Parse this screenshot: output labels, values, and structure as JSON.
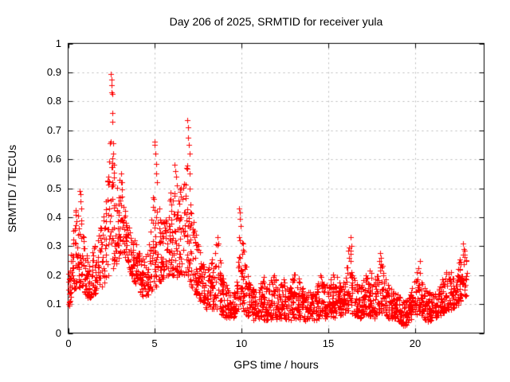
{
  "chart_data": {
    "type": "scatter",
    "title": "Day 206 of 2025, SRMTID for receiver yula",
    "xlabel": "GPS time / hours",
    "ylabel": "SRMTID / TECUs",
    "xlim": [
      0,
      24
    ],
    "ylim": [
      0,
      1
    ],
    "xticks": [
      0,
      5,
      10,
      15,
      20
    ],
    "xtick_labels": [
      "0",
      "5",
      "10",
      "15",
      "20"
    ],
    "yticks": [
      0,
      0.1,
      0.2,
      0.3,
      0.4,
      0.5,
      0.6,
      0.7,
      0.8,
      0.9,
      1
    ],
    "ytick_labels": [
      "0",
      "0.1",
      "0.2",
      "0.3",
      "0.4",
      "0.5",
      "0.6",
      "0.7",
      "0.8",
      "0.9",
      "1"
    ],
    "grid": true,
    "legend": "none",
    "marker": "plus",
    "marker_color": "#ff0000",
    "grid_color": "#b8b8b8",
    "axis_color": "#000000",
    "background_color": "#ffffff",
    "series_name": "SRMTID",
    "time_span_hours": [
      0,
      23
    ],
    "sampling_points_per_hour": 100,
    "band_weight_exponent": 1.3,
    "envelope": [
      [
        0.0,
        0.09,
        0.22
      ],
      [
        0.2,
        0.13,
        0.3
      ],
      [
        0.4,
        0.15,
        0.42
      ],
      [
        0.6,
        0.16,
        0.49
      ],
      [
        0.8,
        0.15,
        0.4
      ],
      [
        1.0,
        0.13,
        0.3
      ],
      [
        1.2,
        0.12,
        0.24
      ],
      [
        1.5,
        0.13,
        0.3
      ],
      [
        1.8,
        0.15,
        0.36
      ],
      [
        2.1,
        0.17,
        0.42
      ],
      [
        2.35,
        0.2,
        0.6
      ],
      [
        2.55,
        0.22,
        0.62
      ],
      [
        2.75,
        0.22,
        0.5
      ],
      [
        3.0,
        0.26,
        0.55
      ],
      [
        3.2,
        0.28,
        0.47
      ],
      [
        3.5,
        0.22,
        0.38
      ],
      [
        3.8,
        0.18,
        0.33
      ],
      [
        4.1,
        0.15,
        0.29
      ],
      [
        4.4,
        0.11,
        0.25
      ],
      [
        4.7,
        0.14,
        0.34
      ],
      [
        4.95,
        0.16,
        0.5
      ],
      [
        5.15,
        0.16,
        0.46
      ],
      [
        5.4,
        0.18,
        0.4
      ],
      [
        5.7,
        0.2,
        0.44
      ],
      [
        6.0,
        0.2,
        0.52
      ],
      [
        6.3,
        0.19,
        0.48
      ],
      [
        6.6,
        0.2,
        0.52
      ],
      [
        6.9,
        0.2,
        0.6
      ],
      [
        7.1,
        0.16,
        0.42
      ],
      [
        7.4,
        0.13,
        0.35
      ],
      [
        7.7,
        0.1,
        0.26
      ],
      [
        8.0,
        0.08,
        0.22
      ],
      [
        8.3,
        0.08,
        0.26
      ],
      [
        8.6,
        0.08,
        0.33
      ],
      [
        8.9,
        0.06,
        0.22
      ],
      [
        9.2,
        0.05,
        0.15
      ],
      [
        9.5,
        0.05,
        0.13
      ],
      [
        9.75,
        0.07,
        0.2
      ],
      [
        9.9,
        0.1,
        0.42
      ],
      [
        10.05,
        0.08,
        0.32
      ],
      [
        10.3,
        0.06,
        0.23
      ],
      [
        10.6,
        0.04,
        0.15
      ],
      [
        10.9,
        0.05,
        0.17
      ],
      [
        11.2,
        0.05,
        0.21
      ],
      [
        11.5,
        0.04,
        0.15
      ],
      [
        11.8,
        0.05,
        0.24
      ],
      [
        12.1,
        0.04,
        0.16
      ],
      [
        12.4,
        0.05,
        0.19
      ],
      [
        12.7,
        0.04,
        0.15
      ],
      [
        13.0,
        0.05,
        0.21
      ],
      [
        13.3,
        0.05,
        0.19
      ],
      [
        13.6,
        0.04,
        0.15
      ],
      [
        13.9,
        0.05,
        0.18
      ],
      [
        14.2,
        0.04,
        0.15
      ],
      [
        14.5,
        0.05,
        0.21
      ],
      [
        14.8,
        0.05,
        0.17
      ],
      [
        15.1,
        0.06,
        0.19
      ],
      [
        15.4,
        0.05,
        0.21
      ],
      [
        15.7,
        0.06,
        0.17
      ],
      [
        16.0,
        0.07,
        0.24
      ],
      [
        16.25,
        0.08,
        0.31
      ],
      [
        16.5,
        0.06,
        0.19
      ],
      [
        16.8,
        0.05,
        0.16
      ],
      [
        17.1,
        0.06,
        0.19
      ],
      [
        17.4,
        0.06,
        0.23
      ],
      [
        17.7,
        0.05,
        0.17
      ],
      [
        17.95,
        0.07,
        0.26
      ],
      [
        18.2,
        0.07,
        0.23
      ],
      [
        18.5,
        0.05,
        0.17
      ],
      [
        18.8,
        0.05,
        0.15
      ],
      [
        19.1,
        0.04,
        0.13
      ],
      [
        19.4,
        0.02,
        0.11
      ],
      [
        19.7,
        0.04,
        0.14
      ],
      [
        20.0,
        0.06,
        0.19
      ],
      [
        20.25,
        0.07,
        0.24
      ],
      [
        20.5,
        0.05,
        0.17
      ],
      [
        20.8,
        0.04,
        0.14
      ],
      [
        21.1,
        0.05,
        0.15
      ],
      [
        21.4,
        0.06,
        0.17
      ],
      [
        21.7,
        0.07,
        0.21
      ],
      [
        22.0,
        0.08,
        0.22
      ],
      [
        22.3,
        0.08,
        0.19
      ],
      [
        22.6,
        0.1,
        0.26
      ],
      [
        22.85,
        0.12,
        0.3
      ],
      [
        23.0,
        0.13,
        0.24
      ]
    ],
    "peak_points": [
      [
        0.03,
        0.1
      ],
      [
        0.05,
        0.095
      ],
      [
        0.06,
        0.105
      ],
      [
        0.08,
        0.1
      ],
      [
        0.1,
        0.11
      ],
      [
        0.66,
        0.49
      ],
      [
        0.7,
        0.48
      ],
      [
        0.73,
        0.455
      ],
      [
        0.76,
        0.43
      ],
      [
        2.42,
        0.655
      ],
      [
        2.45,
        0.66
      ],
      [
        2.47,
        0.895
      ],
      [
        2.49,
        0.875
      ],
      [
        2.5,
        0.855
      ],
      [
        2.52,
        0.83
      ],
      [
        2.53,
        0.825
      ],
      [
        2.55,
        0.76
      ],
      [
        2.57,
        0.73
      ],
      [
        2.6,
        0.655
      ],
      [
        2.62,
        0.62
      ],
      [
        2.65,
        0.58
      ],
      [
        3.05,
        0.55
      ],
      [
        3.1,
        0.52
      ],
      [
        4.97,
        0.66
      ],
      [
        5.0,
        0.65
      ],
      [
        5.03,
        0.62
      ],
      [
        5.06,
        0.585
      ],
      [
        5.09,
        0.55
      ],
      [
        5.12,
        0.52
      ],
      [
        6.15,
        0.58
      ],
      [
        6.19,
        0.56
      ],
      [
        6.23,
        0.54
      ],
      [
        6.27,
        0.51
      ],
      [
        6.88,
        0.735
      ],
      [
        6.91,
        0.71
      ],
      [
        6.93,
        0.675
      ],
      [
        6.96,
        0.65
      ],
      [
        6.99,
        0.62
      ],
      [
        7.01,
        0.55
      ],
      [
        7.03,
        0.5
      ],
      [
        8.62,
        0.33
      ],
      [
        8.65,
        0.31
      ],
      [
        9.87,
        0.43
      ],
      [
        9.9,
        0.415
      ],
      [
        9.93,
        0.395
      ],
      [
        9.96,
        0.37
      ],
      [
        16.28,
        0.33
      ],
      [
        16.33,
        0.3
      ],
      [
        18.02,
        0.275
      ],
      [
        18.06,
        0.26
      ],
      [
        20.28,
        0.25
      ],
      [
        22.8,
        0.31
      ],
      [
        22.84,
        0.29
      ],
      [
        22.88,
        0.27
      ]
    ]
  }
}
